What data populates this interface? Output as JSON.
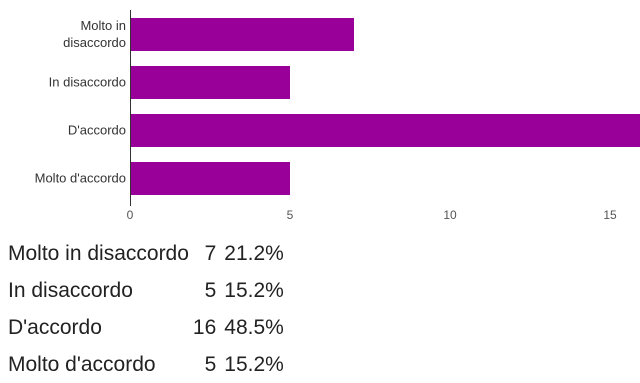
{
  "chart_data": {
    "type": "bar",
    "orientation": "horizontal",
    "title": "",
    "xlabel": "",
    "ylabel": "",
    "categories": [
      [
        "Molto in",
        "disaccordo"
      ],
      [
        "In disaccordo"
      ],
      [
        "D'accordo"
      ],
      [
        "Molto d'accordo"
      ]
    ],
    "values": [
      7,
      5,
      16,
      5
    ],
    "xlim": [
      0,
      16
    ],
    "xticks": [
      "0",
      "5",
      "10",
      "15"
    ],
    "bar_color": "#990099",
    "grid": false,
    "legend": "none"
  },
  "summary": {
    "rows": [
      {
        "label": "Molto in disaccordo",
        "count": "7",
        "percent": "21.2%"
      },
      {
        "label": "In disaccordo",
        "count": "5",
        "percent": "15.2%"
      },
      {
        "label": "D'accordo",
        "count": "16",
        "percent": "48.5%"
      },
      {
        "label": "Molto d'accordo",
        "count": "5",
        "percent": "15.2%"
      }
    ]
  }
}
